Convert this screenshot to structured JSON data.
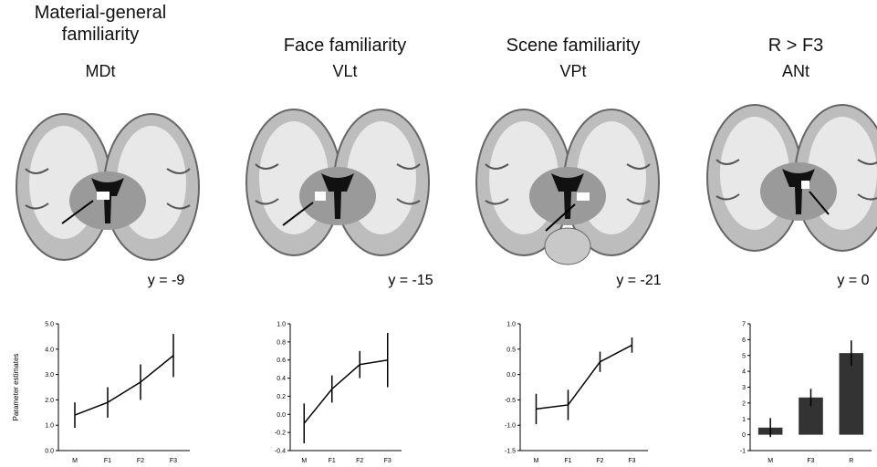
{
  "chart_data": [
    {
      "type": "line",
      "title": "Material-general familiarity",
      "subtitle": "MDt",
      "annotation": "y = -9",
      "ylabel": "Parameter estimates",
      "categories": [
        "M",
        "F1",
        "F2",
        "F3"
      ],
      "values": [
        1.4,
        1.9,
        2.7,
        3.75
      ],
      "errors": [
        0.5,
        0.6,
        0.7,
        0.85
      ],
      "color": "#000000",
      "ylim": [
        0,
        5
      ],
      "yticks": [
        {
          "value": 0,
          "label": "0.0"
        },
        {
          "value": 1,
          "label": "1.0"
        },
        {
          "value": 2,
          "label": "2.0"
        },
        {
          "value": 3,
          "label": "3.0"
        },
        {
          "value": 4,
          "label": "4.0"
        },
        {
          "value": 5,
          "label": "5.0"
        }
      ]
    },
    {
      "type": "line",
      "title": "Face familiarity",
      "subtitle": "VLt",
      "annotation": "y = -15",
      "categories": [
        "M",
        "F1",
        "F2",
        "F3"
      ],
      "values": [
        -0.1,
        0.28,
        0.55,
        0.6
      ],
      "errors": [
        0.22,
        0.15,
        0.15,
        0.3
      ],
      "color": "#000000",
      "ylim": [
        -0.4,
        1.0
      ],
      "yticks": [
        -0.4,
        -0.2,
        {
          "value": 0,
          "label": "0.0"
        },
        0.2,
        0.4,
        0.6,
        0.8,
        {
          "value": 1,
          "label": "1.0"
        }
      ]
    },
    {
      "type": "line",
      "title": "Scene familiarity",
      "subtitle": "VPt",
      "annotation": "y = -21",
      "categories": [
        "M",
        "F1",
        "F2",
        "F3"
      ],
      "values": [
        -0.68,
        -0.6,
        0.25,
        0.58
      ],
      "errors": [
        0.3,
        0.3,
        0.2,
        0.15
      ],
      "color": "#000000",
      "ylim": [
        -1.5,
        1.0
      ],
      "yticks": [
        -1.5,
        {
          "value": -1,
          "label": "-1.0"
        },
        -0.5,
        {
          "value": 0,
          "label": "0.0"
        },
        0.5,
        {
          "value": 1,
          "label": "1.0"
        }
      ]
    },
    {
      "type": "bar",
      "title": "R > F3",
      "subtitle": "ANt",
      "annotation": "y = 0",
      "categories": [
        "M",
        "F3",
        "R"
      ],
      "values": [
        0.45,
        2.35,
        5.15
      ],
      "errors": [
        0.6,
        0.55,
        0.8
      ],
      "color": "#333333",
      "ylim": [
        -1,
        7
      ],
      "yticks": [
        -1,
        0,
        1,
        2,
        3,
        4,
        5,
        6,
        7
      ]
    }
  ]
}
